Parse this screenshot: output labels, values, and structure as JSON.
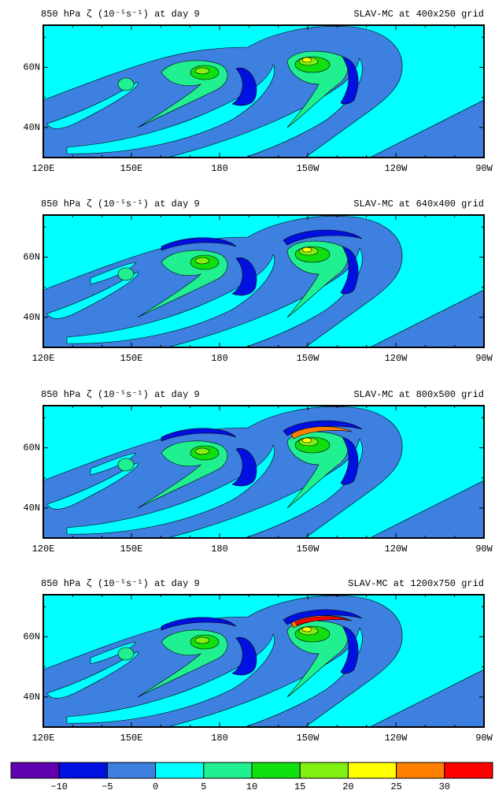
{
  "panels": [
    {
      "title_left": "850 hPa ζ (10⁻⁵s⁻¹) at day 9",
      "title_right": "SLAV-MC at 400x250 grid",
      "x_labels": [
        "120E",
        "150E",
        "180",
        "150W",
        "120W",
        "90W"
      ],
      "y_labels": [
        "40N",
        "60N"
      ]
    },
    {
      "title_left": "850 hPa ζ (10⁻⁵s⁻¹) at day 9",
      "title_right": "SLAV-MC at 640x400 grid",
      "x_labels": [
        "120E",
        "150E",
        "180",
        "150W",
        "120W",
        "90W"
      ],
      "y_labels": [
        "40N",
        "60N"
      ]
    },
    {
      "title_left": "850 hPa ζ (10⁻⁵s⁻¹) at day 9",
      "title_right": "SLAV-MC at 800x500 grid",
      "x_labels": [
        "120E",
        "150E",
        "180",
        "150W",
        "120W",
        "90W"
      ],
      "y_labels": [
        "40N",
        "60N"
      ]
    },
    {
      "title_left": "850 hPa ζ (10⁻⁵s⁻¹) at day 9",
      "title_right": "SLAV-MC at 1200x750 grid",
      "x_labels": [
        "120E",
        "150E",
        "180",
        "150W",
        "120W",
        "90W"
      ],
      "y_labels": [
        "40N",
        "60N"
      ]
    }
  ],
  "colorbar": {
    "colors": [
      "#6000b0",
      "#0010e0",
      "#3d80e0",
      "#00ffff",
      "#20f090",
      "#10e010",
      "#80f010",
      "#ffff00",
      "#ff8000",
      "#ff0000"
    ],
    "labels": [
      "−10",
      "−5",
      "0",
      "5",
      "10",
      "15",
      "20",
      "25",
      "30"
    ]
  }
}
